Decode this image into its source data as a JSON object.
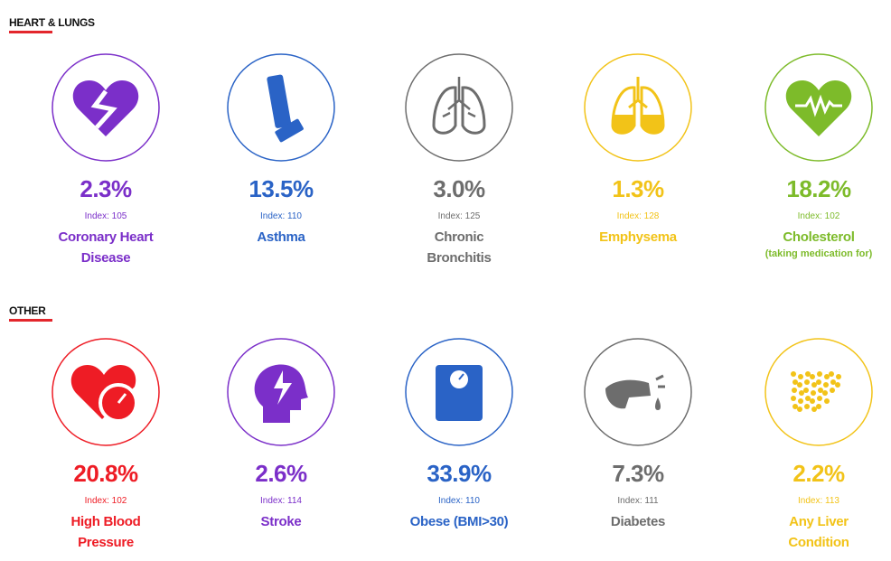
{
  "sections": [
    {
      "title": "HEART & LUNGS",
      "items": [
        {
          "percent": "2.3%",
          "index": "Index: 105",
          "label": [
            "Coronary Heart",
            "Disease"
          ],
          "color": "#7b2fc9"
        },
        {
          "percent": "13.5%",
          "index": "Index: 110",
          "label": [
            "Asthma"
          ],
          "color": "#2a63c6"
        },
        {
          "percent": "3.0%",
          "index": "Index: 125",
          "label": [
            "Chronic",
            "Bronchitis"
          ],
          "color": "#6d6d6d"
        },
        {
          "percent": "1.3%",
          "index": "Index: 128",
          "label": [
            "Emphysema"
          ],
          "color": "#f2c318"
        },
        {
          "percent": "18.2%",
          "index": "Index: 102",
          "label": [
            "Cholesterol"
          ],
          "sublabel": "(taking medication for)",
          "color": "#7dbb2a"
        }
      ]
    },
    {
      "title": "OTHER",
      "items": [
        {
          "percent": "20.8%",
          "index": "Index: 102",
          "label": [
            "High Blood",
            "Pressure"
          ],
          "color": "#ee1c25"
        },
        {
          "percent": "2.6%",
          "index": "Index: 114",
          "label": [
            "Stroke"
          ],
          "color": "#7b2fc9"
        },
        {
          "percent": "33.9%",
          "index": "Index: 110",
          "label": [
            "Obese (BMI>30)"
          ],
          "color": "#2a63c6"
        },
        {
          "percent": "7.3%",
          "index": "Index: 111",
          "label": [
            "Diabetes"
          ],
          "color": "#6d6d6d"
        },
        {
          "percent": "2.2%",
          "index": "Index: 113",
          "label": [
            "Any Liver",
            "Condition"
          ],
          "color": "#f2c318"
        }
      ]
    }
  ]
}
